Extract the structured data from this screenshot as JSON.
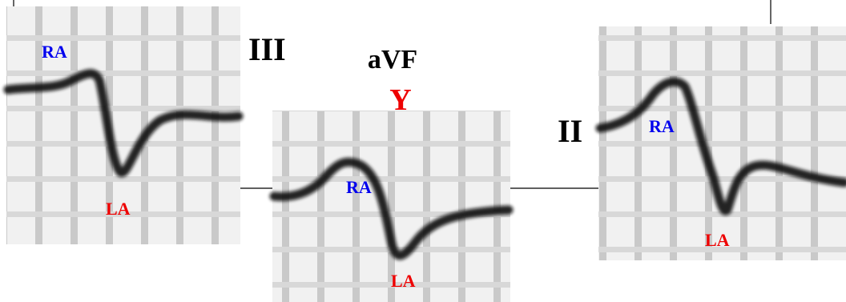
{
  "leads": [
    {
      "label": "III",
      "ra": "RA",
      "la": "LA"
    },
    {
      "label": "aVF",
      "axis": "Y",
      "ra": "RA",
      "la": "LA"
    },
    {
      "label": "II",
      "ra": "RA",
      "la": "LA"
    }
  ]
}
